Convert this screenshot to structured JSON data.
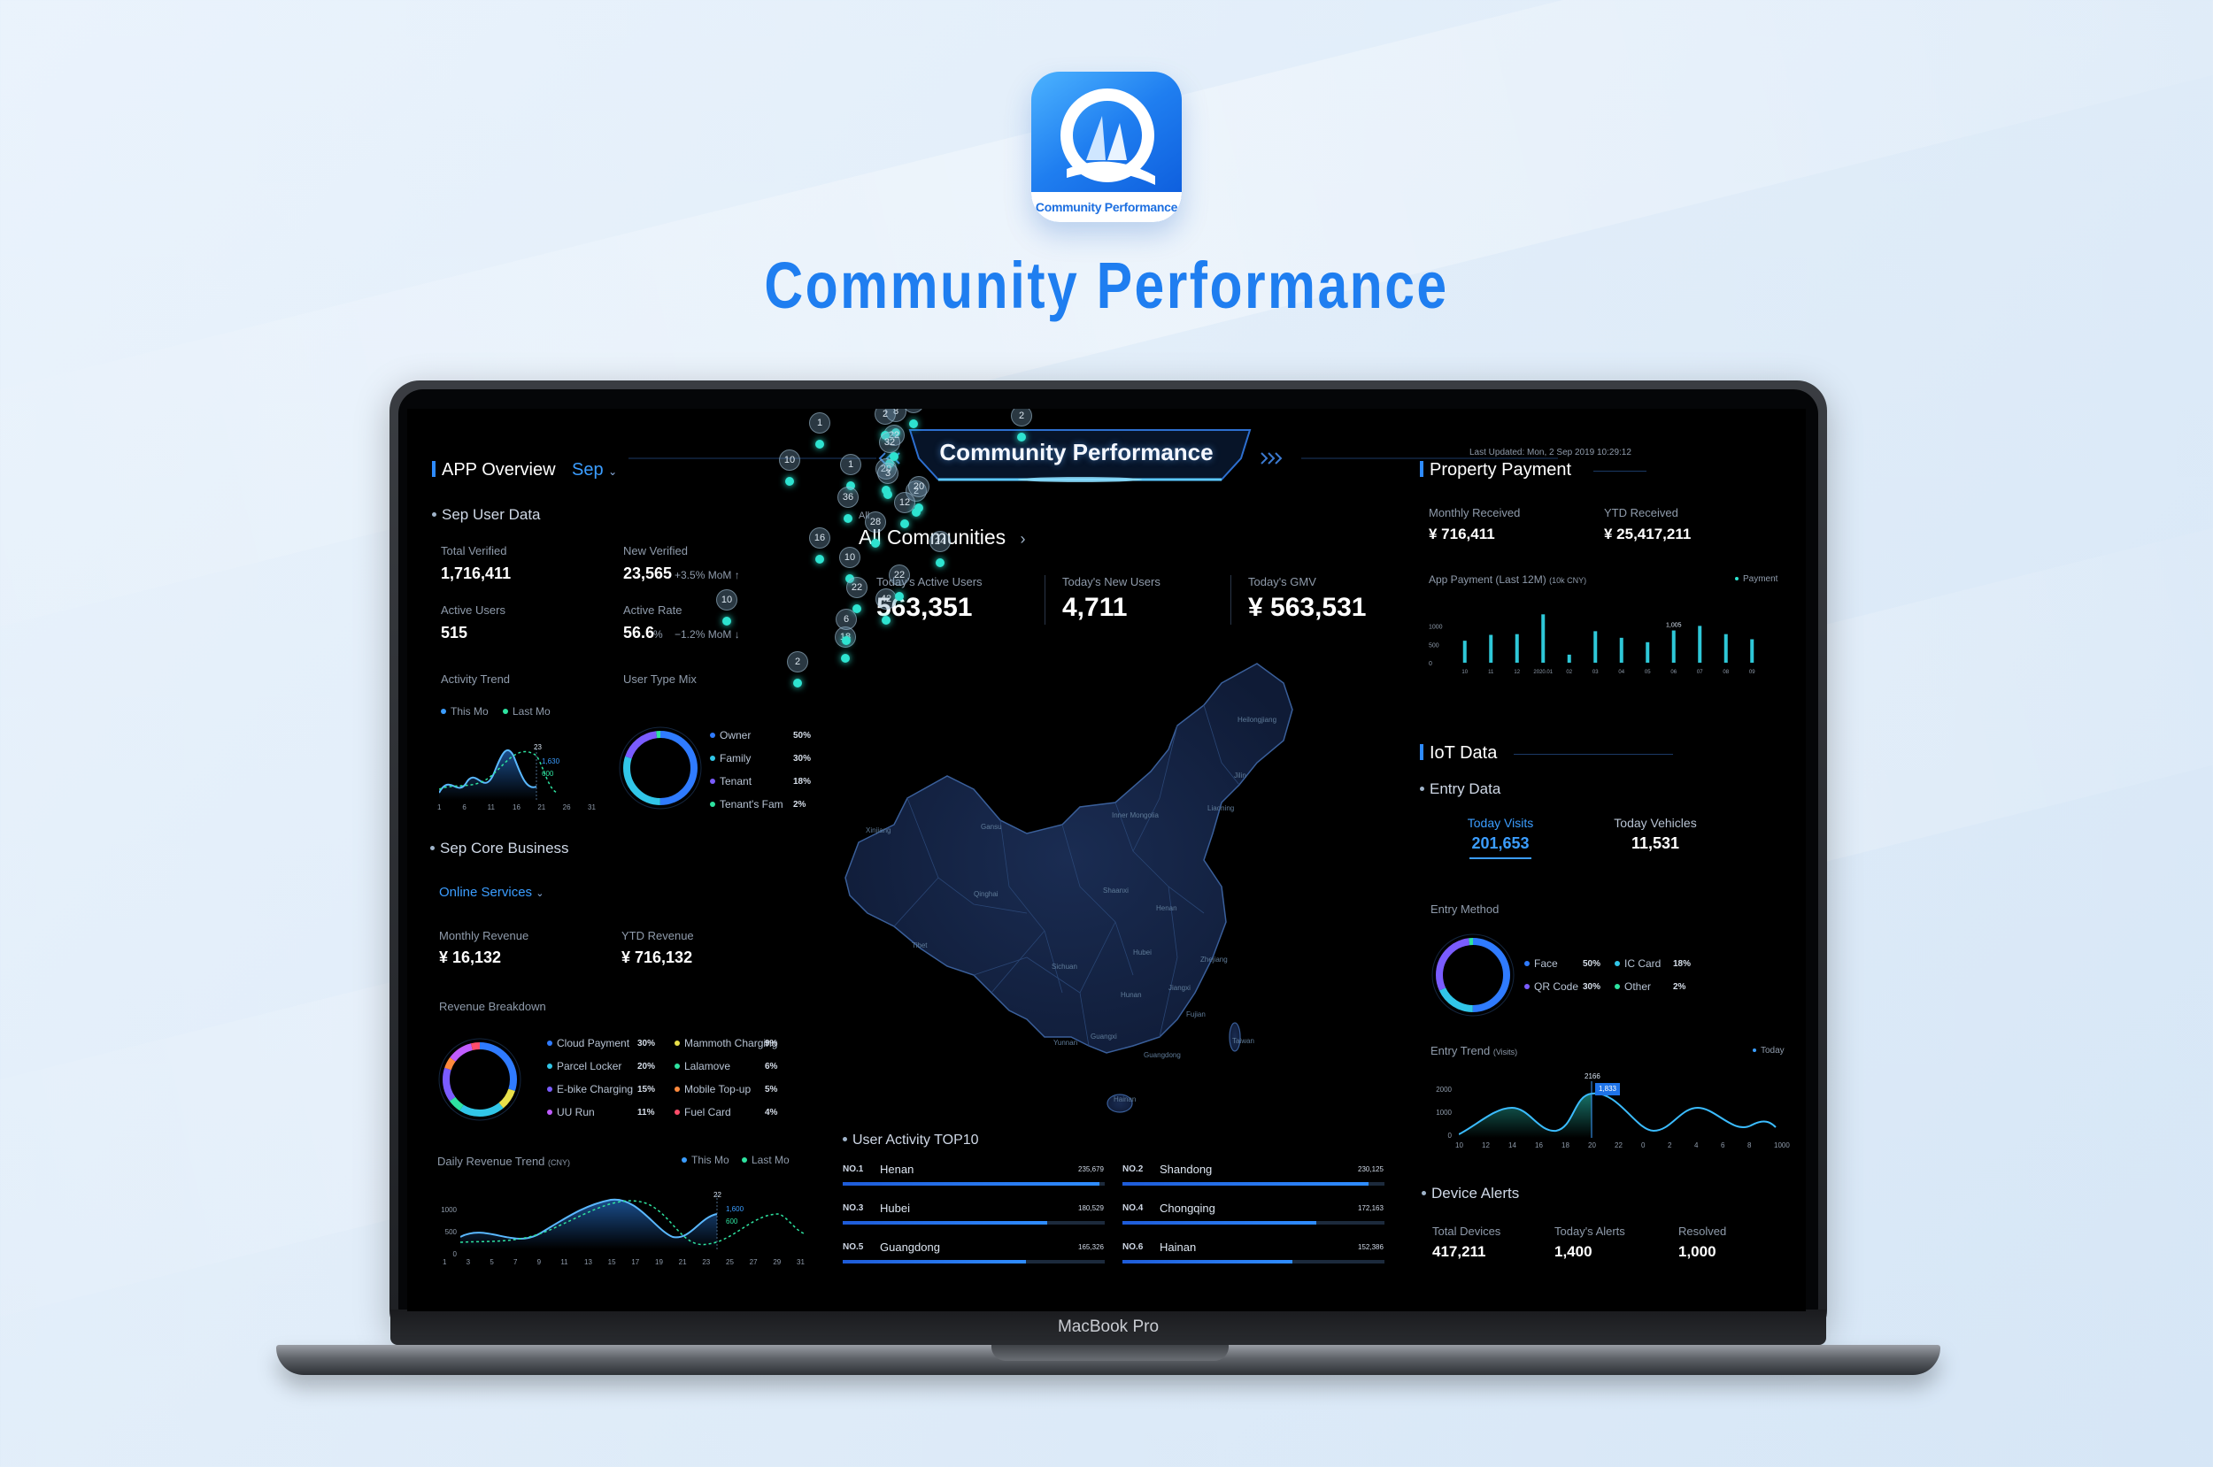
{
  "brand": {
    "icon_label": "Community Performance",
    "title": "Community Performance",
    "laptop_model": "MacBook Pro",
    "accent": "#1f7ef0"
  },
  "header": {
    "title": "Community Performance",
    "last_updated": "Last Updated:  Mon, 2 Sep 2019 10:29:12"
  },
  "app_overview": {
    "title": "APP Overview",
    "month": "Sep",
    "user_data": {
      "title": "Sep User Data",
      "total_verified_label": "Total Verified",
      "total_verified": "1,716,411",
      "new_verified_label": "New Verified",
      "new_verified": "23,565",
      "new_verified_change": "+3.5% MoM ↑",
      "active_users_label": "Active Users",
      "active_users": "515",
      "active_rate_label": "Active Rate",
      "active_rate": "56.6",
      "active_rate_unit": "%",
      "active_rate_change": "−1.2% MoM ↓"
    },
    "activity_trend": {
      "title": "Activity Trend",
      "legend_this": "This Mo",
      "legend_last": "Last Mo",
      "x_ticks": [
        "1",
        "6",
        "11",
        "16",
        "21",
        "26",
        "31"
      ],
      "callout_day": "23",
      "callout_a": "1,630",
      "callout_b": "600"
    },
    "user_type_mix": {
      "title": "User Type Mix",
      "items": [
        {
          "label": "Owner",
          "pct": "50%",
          "value": 50,
          "color": "#2f7bff"
        },
        {
          "label": "Family",
          "pct": "30%",
          "value": 30,
          "color": "#31c6e8"
        },
        {
          "label": "Tenant",
          "pct": "18%",
          "value": 18,
          "color": "#7a5cff"
        },
        {
          "label": "Tenant's Fam",
          "pct": "2%",
          "value": 2,
          "color": "#2ee3a0"
        }
      ]
    }
  },
  "core_business": {
    "title": "Sep Core Business",
    "dropdown": "Online Services",
    "monthly_revenue_label": "Monthly Revenue",
    "monthly_revenue": "¥ 16,132",
    "ytd_revenue_label": "YTD Revenue",
    "ytd_revenue": "¥ 716,132",
    "revenue_breakdown": {
      "title": "Revenue Breakdown",
      "items": [
        {
          "label": "Cloud Payment",
          "pct": "30%",
          "value": 30,
          "color": "#2f7bff"
        },
        {
          "label": "Mammoth Charging",
          "pct": "9%",
          "value": 9,
          "color": "#e8e04a"
        },
        {
          "label": "Parcel Locker",
          "pct": "20%",
          "value": 20,
          "color": "#31c6e8"
        },
        {
          "label": "Lalamove",
          "pct": "6%",
          "value": 6,
          "color": "#2ee3a0"
        },
        {
          "label": "E-bike Charging",
          "pct": "15%",
          "value": 15,
          "color": "#7a5cff"
        },
        {
          "label": "Mobile Top-up",
          "pct": "5%",
          "value": 5,
          "color": "#ff8a3d"
        },
        {
          "label": "UU Run",
          "pct": "11%",
          "value": 11,
          "color": "#c05cff"
        },
        {
          "label": "Fuel Card",
          "pct": "4%",
          "value": 4,
          "color": "#ff4d6a"
        }
      ]
    },
    "daily_trend": {
      "title": "Daily Revenue Trend",
      "unit": "(CNY)",
      "legend_this": "This Mo",
      "legend_last": "Last Mo",
      "y_ticks": [
        "1000",
        "500",
        "0"
      ],
      "x_ticks": [
        "1",
        "3",
        "5",
        "7",
        "9",
        "11",
        "13",
        "15",
        "17",
        "19",
        "21",
        "23",
        "25",
        "27",
        "29",
        "31"
      ],
      "callout_day": "22",
      "callout_a": "1,600",
      "callout_b": "600"
    }
  },
  "center": {
    "scope_label": "All",
    "scope": "All Communities",
    "kpis": [
      {
        "label": "Today's Active Users",
        "value": "563,351"
      },
      {
        "label": "Today's New Users",
        "value": "4,711"
      },
      {
        "label": "Today's GMV",
        "value": "¥ 563,531"
      }
    ],
    "map_pins": [
      "24",
      "32",
      "10",
      "10",
      "6",
      "8",
      "22",
      "2",
      "2",
      "1",
      "32",
      "20",
      "10",
      "2",
      "3",
      "1",
      "20",
      "12",
      "28",
      "36",
      "24",
      "10",
      "22",
      "16",
      "42",
      "22",
      "10",
      "2",
      "18",
      "6"
    ],
    "map_regions": [
      "Heilongjiang",
      "Jilin",
      "Liaoning",
      "Inner Mongolia",
      "Xinjiang",
      "Gansu",
      "Qinghai",
      "Tibet",
      "Sichuan",
      "Yunnan",
      "Shaanxi",
      "Henan",
      "Hubei",
      "Hunan",
      "Guangxi",
      "Guangdong",
      "Fujian",
      "Zhejiang",
      "Jiangxi",
      "Hainan",
      "Taiwan"
    ],
    "top10": {
      "title": "User Activity TOP10",
      "items": [
        {
          "rank": "NO.1",
          "name": "Henan",
          "value": "235,679",
          "fill": 0.98
        },
        {
          "rank": "NO.2",
          "name": "Shandong",
          "value": "230,125",
          "fill": 0.94
        },
        {
          "rank": "NO.3",
          "name": "Hubei",
          "value": "180,529",
          "fill": 0.78
        },
        {
          "rank": "NO.4",
          "name": "Chongqing",
          "value": "172,163",
          "fill": 0.74
        },
        {
          "rank": "NO.5",
          "name": "Guangdong",
          "value": "165,326",
          "fill": 0.7
        },
        {
          "rank": "NO.6",
          "name": "Hainan",
          "value": "152,386",
          "fill": 0.65
        }
      ]
    }
  },
  "property_payment": {
    "title": "Property Payment",
    "monthly_label": "Monthly Received",
    "monthly": "¥ 716,411",
    "ytd_label": "YTD Received",
    "ytd": "¥ 25,417,211",
    "chart": {
      "title": "App Payment (Last 12M)",
      "unit": "(10k CNY)",
      "legend": "Payment",
      "y_ticks": [
        "1000",
        "500",
        "0"
      ],
      "categories": [
        "10",
        "11",
        "12",
        "2020.01",
        "02",
        "03",
        "04",
        "05",
        "06",
        "07",
        "08",
        "09"
      ],
      "values": [
        600,
        760,
        780,
        1320,
        220,
        860,
        680,
        560,
        880,
        1005,
        780,
        640
      ],
      "peak_label": "1,005",
      "ylim": [
        0,
        1400
      ]
    }
  },
  "iot": {
    "title": "IoT Data",
    "entry": {
      "title": "Entry Data",
      "visits_label": "Today Visits",
      "visits": "201,653",
      "vehicles_label": "Today Vehicles",
      "vehicles": "11,531"
    },
    "entry_method": {
      "title": "Entry Method",
      "items": [
        {
          "label": "Face",
          "pct": "50%",
          "value": 50,
          "color": "#2f7bff"
        },
        {
          "label": "IC Card",
          "pct": "18%",
          "value": 18,
          "color": "#31c6e8"
        },
        {
          "label": "QR Code",
          "pct": "30%",
          "value": 30,
          "color": "#7a5cff"
        },
        {
          "label": "Other",
          "pct": "2%",
          "value": 2,
          "color": "#2ee3a0"
        }
      ]
    },
    "entry_trend": {
      "title": "Entry Trend",
      "unit": "(Visits)",
      "legend": "Today",
      "y_ticks": [
        "2000",
        "1000",
        "0"
      ],
      "x_ticks": [
        "10",
        "12",
        "14",
        "16",
        "18",
        "20",
        "22",
        "0",
        "2",
        "4",
        "6",
        "8",
        "1000"
      ],
      "peak_label": "2166",
      "callout": "1,833"
    },
    "alerts": {
      "title": "Device Alerts",
      "total_label": "Total Devices",
      "total": "417,211",
      "today_label": "Today's Alerts",
      "today": "1,400",
      "resolved_label": "Resolved",
      "resolved": "1,000"
    }
  }
}
